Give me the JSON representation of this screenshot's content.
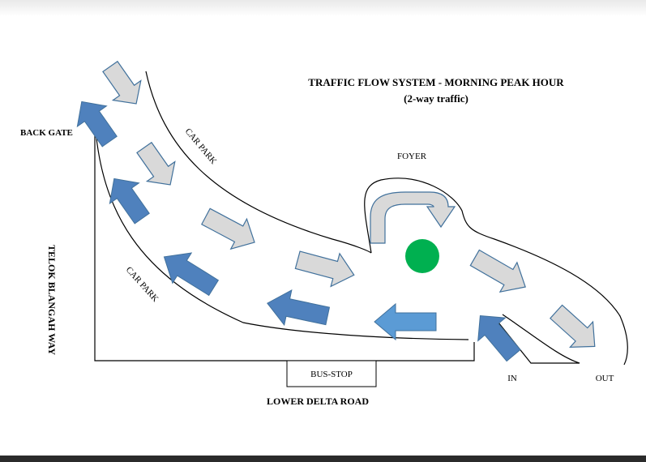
{
  "title": "TRAFFIC FLOW SYSTEM - MORNING PEAK HOUR",
  "subtitle": "(2-way traffic)",
  "labels": {
    "back_gate": "BACK GATE",
    "car_park_upper": "CAR PARK",
    "car_park_lower": "CAR PARK",
    "foyer": "FOYER",
    "telok_blangah_way": "TELOK BLANGAH WAY",
    "bus_stop": "BUS-STOP",
    "lower_delta_road": "LOWER DELTA ROAD",
    "in": "IN",
    "out": "OUT"
  },
  "colors": {
    "inbound_arrow": "#d9d9d9",
    "outbound_arrow": "#4f81bd",
    "light_arrow": "#5b9bd5",
    "roundabout": "#00b050",
    "arrow_outline": "#41719c"
  }
}
